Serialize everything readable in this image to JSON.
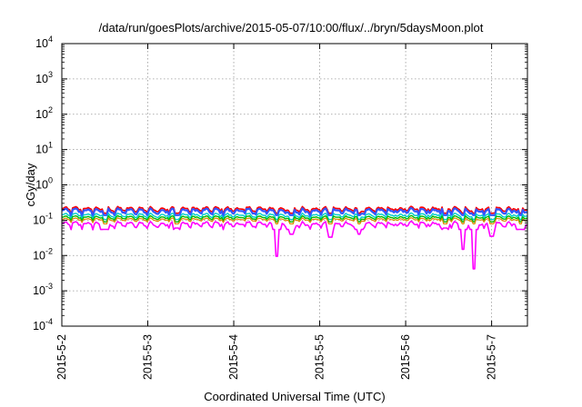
{
  "chart_data": {
    "type": "line",
    "title": "/data/run/goesPlots/archive/2015-05-07/10:00/flux/../bryn/5daysMoon.plot",
    "xlabel": "Coordinated Universal Time (UTC)",
    "ylabel": "cGy/day",
    "yscale": "log",
    "grid": true,
    "ylim": [
      0.0001,
      10000
    ],
    "xlim": [
      "2015-05-02T00:00",
      "2015-05-07T10:00"
    ],
    "x_ticks": [
      {
        "value": "2015-05-02",
        "label": "2015-5-2"
      },
      {
        "value": "2015-05-03",
        "label": "2015-5-3"
      },
      {
        "value": "2015-05-04",
        "label": "2015-5-4"
      },
      {
        "value": "2015-05-05",
        "label": "2015-5-5"
      },
      {
        "value": "2015-05-06",
        "label": "2015-5-6"
      },
      {
        "value": "2015-05-07",
        "label": "2015-5-7"
      }
    ],
    "y_ticks": [
      {
        "value": 10000,
        "base": "10",
        "exp": "4"
      },
      {
        "value": 1000,
        "base": "10",
        "exp": "3"
      },
      {
        "value": 100,
        "base": "10",
        "exp": "2"
      },
      {
        "value": 10,
        "base": "10",
        "exp": "1"
      },
      {
        "value": 1,
        "base": "10",
        "exp": "0"
      },
      {
        "value": 0.1,
        "base": "10",
        "exp": "-1"
      },
      {
        "value": 0.01,
        "base": "10",
        "exp": "-2"
      },
      {
        "value": 0.001,
        "base": "10",
        "exp": "-3"
      },
      {
        "value": 0.0001,
        "base": "10",
        "exp": "-4"
      }
    ],
    "series": [
      {
        "color": "#ff0000",
        "base": 0.21,
        "amplitude": 0.18,
        "width": 1.6
      },
      {
        "color": "#3355ff",
        "base": 0.185,
        "amplitude": 0.2,
        "width": 2.2
      },
      {
        "color": "#00cccc",
        "base": 0.14,
        "amplitude": 0.15,
        "width": 1.4
      },
      {
        "color": "#00bb00",
        "base": 0.12,
        "amplitude": 0.13,
        "width": 1.4
      },
      {
        "color": "#dd8800",
        "base": 0.105,
        "amplitude": 0.12,
        "width": 1.2
      },
      {
        "color": "#ff00ff",
        "base": 0.078,
        "amplitude": 0.2,
        "width": 1.6
      }
    ],
    "dips": [
      {
        "date": "2015-05-02T12:00",
        "min": 0.055
      },
      {
        "date": "2015-05-03T08:00",
        "min": 0.06
      },
      {
        "date": "2015-05-04T12:00",
        "min": 0.0095
      },
      {
        "date": "2015-05-04T16:00",
        "min": 0.04
      },
      {
        "date": "2015-05-05T03:00",
        "min": 0.033
      },
      {
        "date": "2015-05-05T11:00",
        "min": 0.04
      },
      {
        "date": "2015-05-06T11:00",
        "min": 0.06
      },
      {
        "date": "2015-05-06T16:00",
        "min": 0.015
      },
      {
        "date": "2015-05-06T19:00",
        "min": 0.0042
      },
      {
        "date": "2015-05-07T00:00",
        "min": 0.035
      },
      {
        "date": "2015-05-07T08:00",
        "min": 0.055
      }
    ]
  }
}
